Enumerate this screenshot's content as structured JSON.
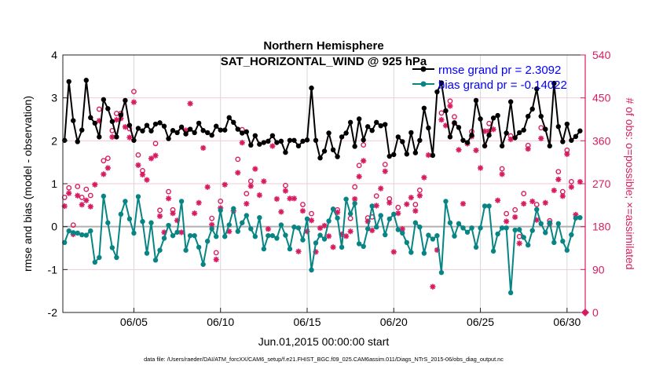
{
  "chart_data": {
    "type": "line",
    "title": [
      "Northern Hemisphere",
      "SAT_HORIZONTAL_WIND @ 925 hPa"
    ],
    "xlabel": "Jun.01,2015 00:00:00 start",
    "ylabel": "rmse and bias (model - observation)",
    "ylabel_right": "# of obs: o=possible; ×=assimilated",
    "footer": "data file: /Users/raeder/DAI/ATM_forcXX/CAM6_setup/f.e21.FHIST_BGC.f09_025.CAM6assim.011/Diags_NTrS_2015-06/obs_diag_output.nc",
    "xlim": [
      0.9,
      31.05
    ],
    "ylim": [
      -2,
      4
    ],
    "ylim_right": [
      0,
      540
    ],
    "x_start_day": 1,
    "x_step_days": 0.25,
    "x_ticks": [
      {
        "day": 5,
        "label": "06/05"
      },
      {
        "day": 10,
        "label": "06/10"
      },
      {
        "day": 15,
        "label": "06/15"
      },
      {
        "day": 20,
        "label": "06/20"
      },
      {
        "day": 25,
        "label": "06/25"
      },
      {
        "day": 30,
        "label": "06/30"
      }
    ],
    "y_ticks": [
      "-2",
      "-1",
      "0",
      "1",
      "2",
      "3",
      "4"
    ],
    "y_ticks_right": [
      "0",
      "90",
      "180",
      "270",
      "360",
      "450",
      "540"
    ],
    "legend_position": "top-right",
    "grid": true,
    "colors": {
      "rmse": "#000000",
      "bias": "#078585",
      "obs": "#d81b60",
      "legend_text": "#0000ff",
      "zero_line": "#b0b0b0",
      "grid_h": "#f5c8da",
      "grid_v": "#d8d8d8"
    },
    "series": [
      {
        "name": "rmse grand pr = 2.3092",
        "key": "rmse",
        "values": [
          2.01,
          3.38,
          2.47,
          1.98,
          2.25,
          3.41,
          2.54,
          2.41,
          2.09,
          2.96,
          2.75,
          2.45,
          2.09,
          2.6,
          2.94,
          2.36,
          2.01,
          2.29,
          2.23,
          2.36,
          2.23,
          2.39,
          2.42,
          2.34,
          2.05,
          2.24,
          2.19,
          2.32,
          2.16,
          2.27,
          2.19,
          2.41,
          2.24,
          2.19,
          2.13,
          2.34,
          2.25,
          2.25,
          2.54,
          2.43,
          2.27,
          2.18,
          2.21,
          1.9,
          2.12,
          1.92,
          1.96,
          1.99,
          2.12,
          1.96,
          1.99,
          1.73,
          2.01,
          2.01,
          1.88,
          1.99,
          2.02,
          3.23,
          2.01,
          1.6,
          1.76,
          2.18,
          1.79,
          1.63,
          2.09,
          2.18,
          2.43,
          1.87,
          2.51,
          2.02,
          2.33,
          2.24,
          2.43,
          2.35,
          2.38,
          1.64,
          1.68,
          2.09,
          1.98,
          1.69,
          2.19,
          1.72,
          2.01,
          2.76,
          2.3,
          1.66,
          3.14,
          3.35,
          2.7,
          2.09,
          2.42,
          2.31,
          2.01,
          1.96,
          2.13,
          2.94,
          2.51,
          1.88,
          2.13,
          2.53,
          2.59,
          1.88,
          2.18,
          2.91,
          2.07,
          2.19,
          2.25,
          2.57,
          2.74,
          3.21,
          2.57,
          2.27,
          1.88,
          3.34,
          2.33,
          1.98,
          2.39,
          2.01,
          2.1,
          2.23
        ]
      },
      {
        "name": "bias grand pr = -0.14022",
        "key": "bias",
        "values": [
          -0.37,
          -0.1,
          -0.14,
          -0.15,
          -0.19,
          -0.2,
          -0.1,
          -0.83,
          -0.72,
          0.71,
          0.09,
          -0.49,
          -0.72,
          0.29,
          0.59,
          0.18,
          -0.15,
          0.7,
          0.12,
          -0.62,
          0.09,
          -0.78,
          -0.55,
          -0.27,
          0.03,
          -0.21,
          -0.13,
          0.59,
          -0.55,
          -0.21,
          -0.21,
          -0.48,
          -0.88,
          -0.34,
          -0.05,
          -0.23,
          0.38,
          -0.23,
          0.04,
          0.42,
          -0.11,
          0.09,
          0.26,
          -0.05,
          -0.23,
          0.21,
          -0.52,
          -0.21,
          -0.21,
          -0.27,
          0.04,
          -0.2,
          -0.52,
          -0.01,
          -0.03,
          -0.31,
          0.18,
          -1.01,
          -0.38,
          -0.2,
          -0.29,
          0.13,
          0.41,
          0.2,
          -0.48,
          0.64,
          0.3,
          0.54,
          -0.4,
          -0.46,
          -0.05,
          0.48,
          -0.01,
          0.26,
          -0.19,
          0.18,
          0.29,
          -0.07,
          -0.15,
          -0.37,
          -0.6,
          0.09,
          -0.01,
          -0.62,
          -0.2,
          -0.29,
          -0.21,
          -1.07,
          0.59,
          0.09,
          -0.22,
          0.07,
          -0.03,
          -0.13,
          -0.03,
          -0.48,
          -0.03,
          0.48,
          0.48,
          -0.57,
          -0.17,
          -0.03,
          -0.03,
          -1.54,
          -0.08,
          -0.07,
          -0.25,
          -0.43,
          -0.09,
          0.4,
          0.07,
          -0.14,
          0.09,
          -0.37,
          0.07,
          -0.34,
          -0.55,
          -0.19,
          0.2,
          0.21
        ]
      },
      {
        "name": "obs possible",
        "key": "possible",
        "axis": "right",
        "values": [
          238,
          258,
          180,
          261,
          238,
          255,
          242,
          null,
          423,
          315,
          320,
          378,
          414,
          414,
          null,
          382,
          460,
          327,
          294,
          null,
          null,
          351,
          211,
          null,
          250,
          212,
          null,
          null,
          null,
          null,
          null,
          null,
          null,
          null,
          194,
          122,
          230,
          null,
          null,
          null,
          318,
          380,
          246,
          272,
          null,
          null,
          null,
          null,
          null,
          null,
          null,
          263,
          null,
          null,
          null,
          223,
          null,
          204,
          null,
          null,
          null,
          null,
          null,
          212,
          null,
          null,
          194,
          260,
          305,
          348,
          195,
          197,
          241,
          null,
          307,
          235,
          null,
          217,
          null,
          null,
          null,
          223,
          253,
          null,
          null,
          null,
          null,
          415,
          null,
          440,
          407,
          null,
          null,
          null,
          376,
          null,
          null,
          null,
          393,
          null,
          null,
          298,
          204,
          367,
          212,
          156,
          246,
          347,
          null,
          223,
          384,
          null,
          189,
          null,
          292,
          250,
          337,
          271,
          null,
          null
        ]
      },
      {
        "name": "obs assimilated",
        "key": "assimilated",
        "axis": "right",
        "values": [
          223,
          250,
          164,
          245,
          226,
          235,
          222,
          268,
          402,
          290,
          303,
          368,
          404,
          407,
          389,
          367,
          441,
          309,
          289,
          278,
          323,
          329,
          202,
          168,
          239,
          208,
          193,
          168,
          382,
          438,
          208,
          230,
          345,
          263,
          184,
          111,
          219,
          268,
          170,
          213,
          293,
          356,
          228,
          265,
          301,
          246,
          275,
          175,
          349,
          238,
          211,
          255,
          239,
          239,
          128,
          213,
          170,
          193,
          127,
          177,
          182,
          160,
          137,
          210,
          164,
          160,
          170,
          238,
          285,
          318,
          191,
          172,
          224,
          260,
          296,
          230,
          127,
          208,
          175,
          227,
          241,
          213,
          245,
          283,
          330,
          54,
          131,
          404,
          392,
          433,
          397,
          341,
          228,
          354,
          369,
          340,
          303,
          380,
          380,
          384,
          235,
          290,
          191,
          363,
          200,
          145,
          228,
          343,
          233,
          194,
          365,
          230,
          186,
          256,
          279,
          244,
          332,
          263,
          205,
          274
        ]
      }
    ]
  }
}
